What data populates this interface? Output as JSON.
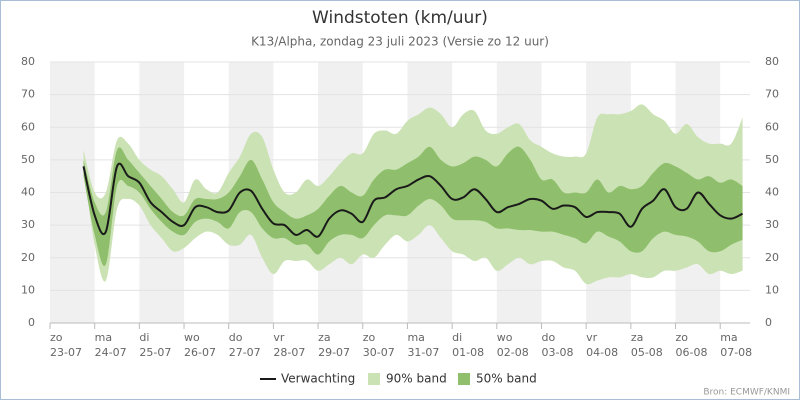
{
  "chart_data": {
    "type": "line",
    "title": "Windstoten (km/uur)",
    "subtitle": "K13/Alpha, zondag 23 juli 2023 (Versie zo 12 uur)",
    "source": "Bron: ECMWF/KNMI",
    "xlim": [
      0,
      376
    ],
    "ylim": [
      0,
      80
    ],
    "yticks": [
      0,
      10,
      20,
      30,
      40,
      50,
      60,
      70,
      80
    ],
    "grid": true,
    "xticks": [
      {
        "value": 0,
        "label": "zo 23-07"
      },
      {
        "value": 24,
        "label": "ma 24-07"
      },
      {
        "value": 48,
        "label": "di 25-07"
      },
      {
        "value": 72,
        "label": "wo 26-07"
      },
      {
        "value": 96,
        "label": "do 27-07"
      },
      {
        "value": 120,
        "label": "vr 28-07"
      },
      {
        "value": 144,
        "label": "za 29-07"
      },
      {
        "value": 168,
        "label": "zo 30-07"
      },
      {
        "value": 192,
        "label": "ma 31-07"
      },
      {
        "value": 216,
        "label": "di 01-08"
      },
      {
        "value": 240,
        "label": "wo 02-08"
      },
      {
        "value": 264,
        "label": "do 03-08"
      },
      {
        "value": 288,
        "label": "vr 04-08"
      },
      {
        "value": 312,
        "label": "za 05-08"
      },
      {
        "value": 336,
        "label": "zo 06-08"
      },
      {
        "value": 360,
        "label": "ma 07-08"
      }
    ],
    "x": [
      18,
      24,
      30,
      36,
      42,
      48,
      54,
      60,
      66,
      72,
      78,
      84,
      90,
      96,
      102,
      108,
      114,
      120,
      126,
      132,
      138,
      144,
      150,
      156,
      162,
      168,
      174,
      180,
      186,
      192,
      198,
      204,
      210,
      216,
      222,
      228,
      234,
      240,
      246,
      252,
      258,
      264,
      270,
      276,
      282,
      288,
      294,
      300,
      306,
      312,
      318,
      324,
      330,
      336,
      342,
      348,
      354,
      360,
      366,
      372
    ],
    "series": [
      {
        "name": "Verwachting",
        "color": "#1a1a1a",
        "values": [
          48,
          33,
          28,
          48,
          45,
          43,
          37,
          34,
          31,
          30,
          35.5,
          35.5,
          34,
          34.5,
          40,
          40.5,
          35,
          30.5,
          30,
          27,
          28.5,
          26.5,
          32,
          34.5,
          33.5,
          31,
          37.5,
          38.5,
          41,
          42,
          44,
          45,
          42,
          38,
          38.5,
          41,
          38,
          34,
          35.5,
          36.5,
          38,
          37.5,
          35,
          36,
          35.5,
          32.5,
          34,
          34,
          33.5,
          29.5,
          35,
          37.5,
          41,
          35.5,
          35,
          40,
          36.5,
          33,
          32,
          33.5
        ]
      },
      {
        "name": "90% band",
        "color": "#cbe2b4",
        "lower": [
          48,
          24,
          13,
          35,
          38,
          36,
          30,
          26,
          22,
          23,
          26,
          28,
          27,
          24,
          24,
          27,
          20,
          15,
          19,
          19,
          19,
          16,
          18,
          20,
          18,
          21,
          20,
          24,
          27,
          25,
          27,
          30,
          26,
          22,
          21,
          19,
          20,
          16,
          18,
          20,
          18,
          19,
          19,
          17,
          16,
          12,
          13,
          14,
          14,
          15,
          14,
          14,
          16,
          16,
          17,
          18,
          15,
          16,
          15,
          16
        ],
        "upper": [
          53,
          40,
          40,
          56,
          55,
          50,
          47,
          45,
          41,
          37,
          44,
          41,
          40,
          46,
          51,
          58,
          57,
          47,
          40,
          40,
          44,
          42,
          45,
          49,
          52,
          52,
          58,
          59,
          58,
          62,
          64,
          66,
          64,
          60,
          64,
          65,
          59,
          58,
          60,
          61,
          56,
          54,
          52,
          51,
          51,
          52,
          63,
          64,
          64,
          65,
          67,
          64,
          62,
          58,
          61,
          57,
          55,
          55,
          55,
          63
        ]
      },
      {
        "name": "50% band",
        "color": "#8fbf6c",
        "lower": [
          45,
          27,
          18,
          42,
          42,
          40,
          35,
          31,
          28,
          27,
          31,
          32,
          31,
          29,
          34,
          34,
          29,
          26,
          26,
          24,
          24,
          21,
          25,
          27,
          27,
          26,
          30,
          33,
          33,
          33,
          36,
          38,
          36,
          32,
          31.5,
          31.5,
          31,
          29,
          29,
          28.5,
          28.5,
          28,
          28,
          27,
          26,
          24.5,
          28,
          26.5,
          25,
          22,
          22,
          26,
          28,
          27,
          26.5,
          25,
          22,
          22,
          24,
          25.5
        ],
        "upper": [
          50,
          37,
          34,
          53,
          50,
          46,
          42,
          38,
          34,
          33,
          38,
          38,
          38,
          40,
          45,
          50,
          44,
          37,
          34,
          32,
          33,
          35,
          39,
          42,
          40,
          39,
          44,
          47,
          47,
          49,
          51,
          54,
          50,
          48,
          49,
          51,
          50,
          48,
          52,
          54,
          50,
          44,
          44,
          40,
          40,
          40,
          44,
          40,
          42,
          41,
          42,
          46,
          49,
          48,
          46,
          44,
          45,
          43,
          44,
          42
        ]
      }
    ]
  }
}
